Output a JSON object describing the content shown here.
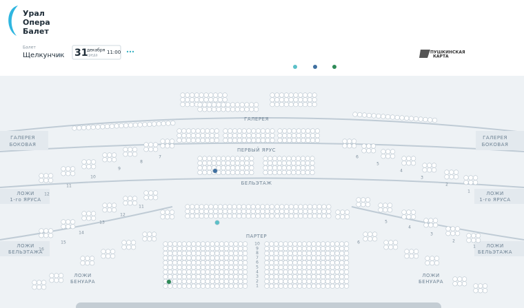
{
  "header": {
    "logo": [
      "Урал",
      "Опера",
      "Балет"
    ],
    "genre": "Балет",
    "title": "Щелкунчик",
    "date": {
      "day": "31",
      "month": "декабря",
      "weekday": "среда",
      "time": "11:00"
    },
    "pushkin": [
      "ПУШКИНСКАЯ",
      "КАРТА"
    ]
  },
  "map": {
    "gallery": "ГАЛЕРЕЯ",
    "gallery_side_left": [
      "ГАЛЕРЕЯ",
      "БОКОВАЯ"
    ],
    "gallery_side_right": [
      "ГАЛЕРЕЯ",
      "БОКОВАЯ"
    ],
    "first_tier": "ПЕРВЫЙ ЯРУС",
    "belletage": "БЕЛЬЭТАЖ",
    "boxes_tier1_left": [
      "ЛОЖИ",
      "1-го ЯРУСА"
    ],
    "boxes_tier1_right": [
      "ЛОЖИ",
      "1-го ЯРУСА"
    ],
    "boxes_belletage_left": [
      "ЛОЖИ",
      "БЕЛЬЭТАЖА"
    ],
    "boxes_belletage_right": [
      "ЛОЖИ",
      "БЕЛЬЭТАЖА"
    ],
    "parterre": "ПАРТЕР",
    "boxes_benoir_left": [
      "ЛОЖИ",
      "БЕНУАРА"
    ],
    "boxes_benoir_right": [
      "ЛОЖИ",
      "БЕНУАРА"
    ],
    "parterre_rows": [
      "10",
      "9",
      "8",
      "7",
      "6",
      "5",
      "4",
      "3",
      "2",
      "1"
    ],
    "box_numbers_tier1_left": [
      "12",
      "11",
      "10",
      "9",
      "8",
      "7"
    ],
    "box_numbers_tier1_right": [
      "6",
      "5",
      "4",
      "3",
      "2",
      "1"
    ],
    "box_numbers_belletage_left": [
      "16",
      "15",
      "14",
      "13",
      "12",
      "11"
    ],
    "box_numbers_belletage_right": [
      "6",
      "5",
      "4",
      "3",
      "2",
      "1"
    ]
  }
}
